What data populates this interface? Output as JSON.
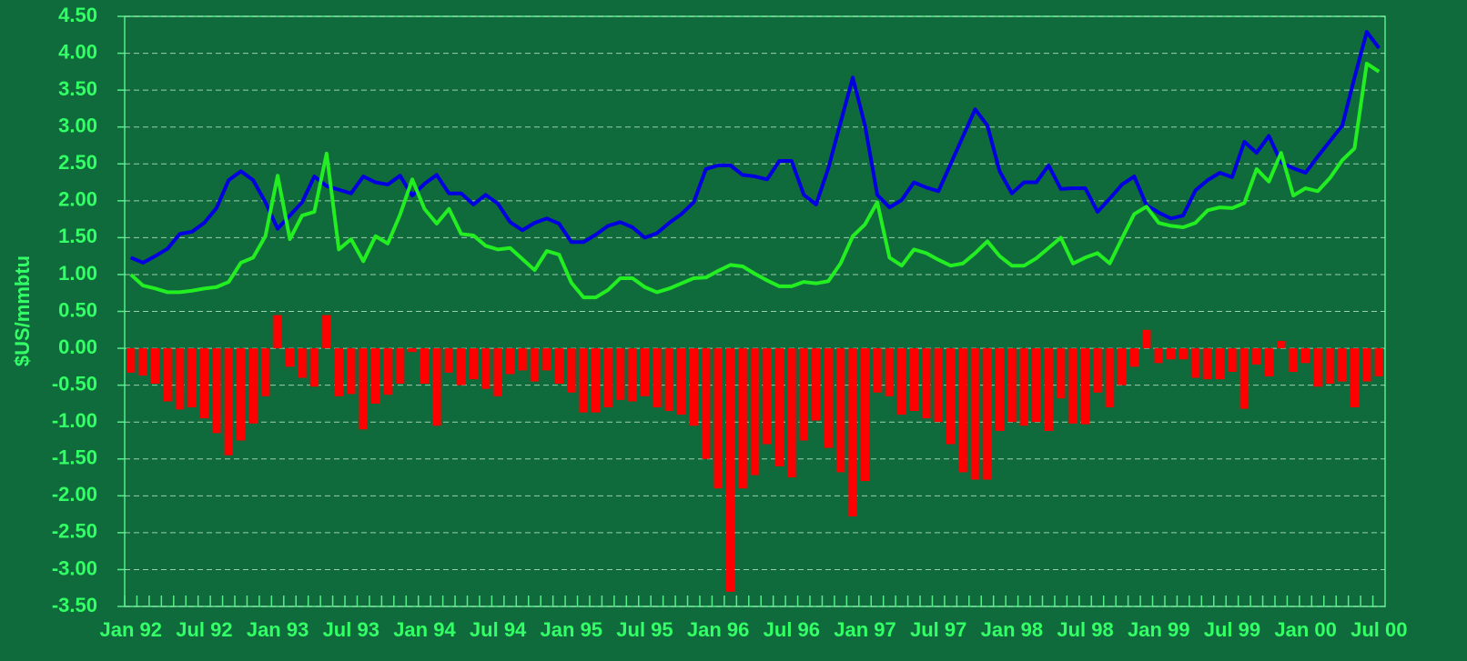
{
  "chart_data": {
    "type": "combo",
    "ylabel": "$US/mmbtu",
    "categories": [
      "Jan 92",
      null,
      null,
      null,
      null,
      null,
      "Jul 92",
      null,
      null,
      null,
      null,
      null,
      "Jan 93",
      null,
      null,
      null,
      null,
      null,
      "Jul 93",
      null,
      null,
      null,
      null,
      null,
      "Jan 94",
      null,
      null,
      null,
      null,
      null,
      "Jul 94",
      null,
      null,
      null,
      null,
      null,
      "Jan 95",
      null,
      null,
      null,
      null,
      null,
      "Jul 95",
      null,
      null,
      null,
      null,
      null,
      "Jan 96",
      null,
      null,
      null,
      null,
      null,
      "Jul 96",
      null,
      null,
      null,
      null,
      null,
      "Jan 97",
      null,
      null,
      null,
      null,
      null,
      "Jul 97",
      null,
      null,
      null,
      null,
      null,
      "Jan 98",
      null,
      null,
      null,
      null,
      null,
      "Jul 98",
      null,
      null,
      null,
      null,
      null,
      "Jan 99",
      null,
      null,
      null,
      null,
      null,
      "Jul 99",
      null,
      null,
      null,
      null,
      null,
      "Jan 00",
      null,
      null,
      null,
      null,
      null,
      "Jul 00"
    ],
    "series": [
      {
        "type": "bar",
        "color": "#ff0000",
        "values": [
          -0.33,
          -0.37,
          -0.48,
          -0.72,
          -0.83,
          -0.8,
          -0.95,
          -1.15,
          -1.45,
          -1.25,
          -1.02,
          -0.65,
          0.45,
          -0.25,
          -0.4,
          -0.52,
          0.45,
          -0.65,
          -0.62,
          -1.1,
          -0.75,
          -0.63,
          -0.48,
          -0.05,
          -0.48,
          -1.05,
          -0.33,
          -0.5,
          -0.42,
          -0.55,
          -0.65,
          -0.35,
          -0.3,
          -0.45,
          -0.3,
          -0.48,
          -0.6,
          -0.87,
          -0.87,
          -0.8,
          -0.7,
          -0.72,
          -0.65,
          -0.8,
          -0.85,
          -0.9,
          -1.05,
          -1.5,
          -1.9,
          -3.3,
          -1.9,
          -1.72,
          -1.3,
          -1.6,
          -1.75,
          -1.25,
          -0.98,
          -1.35,
          -1.68,
          -2.28,
          -1.8,
          -0.6,
          -0.65,
          -0.9,
          -0.85,
          -0.95,
          -1.0,
          -1.3,
          -1.68,
          -1.78,
          -1.78,
          -1.12,
          -1.0,
          -1.05,
          -1.0,
          -1.12,
          -0.68,
          -1.02,
          -1.03,
          -0.6,
          -0.8,
          -0.5,
          -0.25,
          0.25,
          -0.2,
          -0.15,
          -0.15,
          -0.4,
          -0.42,
          -0.42,
          -0.32,
          -0.82,
          -0.22,
          -0.38,
          0.1,
          -0.32,
          -0.2,
          -0.52,
          -0.48,
          -0.45,
          -0.8,
          -0.45,
          -0.38
        ]
      },
      {
        "type": "line",
        "color": "#0000e0",
        "values": [
          1.23,
          1.16,
          1.25,
          1.35,
          1.55,
          1.58,
          1.7,
          1.9,
          2.28,
          2.4,
          2.28,
          1.98,
          1.62,
          1.8,
          1.98,
          2.33,
          2.2,
          2.15,
          2.1,
          2.33,
          2.25,
          2.22,
          2.34,
          2.07,
          2.23,
          2.35,
          2.1,
          2.1,
          1.95,
          2.08,
          1.96,
          1.71,
          1.6,
          1.7,
          1.76,
          1.69,
          1.44,
          1.44,
          1.54,
          1.66,
          1.71,
          1.64,
          1.5,
          1.56,
          1.7,
          1.82,
          1.98,
          2.43,
          2.48,
          2.48,
          2.35,
          2.33,
          2.29,
          2.54,
          2.54,
          2.08,
          1.95,
          2.44,
          3.06,
          3.67,
          3.02,
          2.08,
          1.91,
          2.01,
          2.25,
          2.18,
          2.13,
          2.5,
          2.87,
          3.24,
          3.02,
          2.4,
          2.1,
          2.25,
          2.25,
          2.48,
          2.16,
          2.17,
          2.17,
          1.85,
          2.03,
          2.22,
          2.33,
          1.94,
          1.84,
          1.76,
          1.8,
          2.14,
          2.28,
          2.38,
          2.32,
          2.8,
          2.65,
          2.88,
          2.52,
          2.44,
          2.38,
          2.6,
          2.81,
          3.02,
          3.67,
          4.29,
          4.07
        ]
      },
      {
        "type": "line",
        "color": "#22ee22",
        "values": [
          1.0,
          0.85,
          0.81,
          0.76,
          0.76,
          0.78,
          0.81,
          0.83,
          0.9,
          1.16,
          1.23,
          1.52,
          2.34,
          1.48,
          1.8,
          1.85,
          2.64,
          1.34,
          1.48,
          1.18,
          1.52,
          1.42,
          1.81,
          2.29,
          1.89,
          1.69,
          1.89,
          1.55,
          1.53,
          1.39,
          1.34,
          1.36,
          1.21,
          1.06,
          1.32,
          1.27,
          0.89,
          0.69,
          0.69,
          0.79,
          0.95,
          0.95,
          0.83,
          0.76,
          0.81,
          0.88,
          0.95,
          0.96,
          1.05,
          1.13,
          1.11,
          1.01,
          0.92,
          0.84,
          0.84,
          0.9,
          0.88,
          0.91,
          1.15,
          1.52,
          1.68,
          1.98,
          1.23,
          1.12,
          1.34,
          1.29,
          1.2,
          1.12,
          1.15,
          1.29,
          1.45,
          1.25,
          1.12,
          1.12,
          1.22,
          1.36,
          1.5,
          1.15,
          1.23,
          1.29,
          1.15,
          1.49,
          1.82,
          1.92,
          1.7,
          1.66,
          1.64,
          1.7,
          1.87,
          1.91,
          1.9,
          1.97,
          2.43,
          2.26,
          2.65,
          2.07,
          2.17,
          2.13,
          2.31,
          2.55,
          2.71,
          3.86,
          3.75
        ]
      }
    ],
    "ylim": [
      -3.5,
      4.5
    ],
    "yticks": [
      {
        "value": 4.5,
        "label": "4.50"
      },
      {
        "value": 4,
        "label": "4.00"
      },
      {
        "value": 3.5,
        "label": "3.50"
      },
      {
        "value": 3,
        "label": "3.00"
      },
      {
        "value": 2.5,
        "label": "2.50"
      },
      {
        "value": 2,
        "label": "2.00"
      },
      {
        "value": 1.5,
        "label": "1.50"
      },
      {
        "value": 1,
        "label": "1.00"
      },
      {
        "value": 0.5,
        "label": "0.50"
      },
      {
        "value": 0,
        "label": "0.00"
      },
      {
        "value": -0.5,
        "label": "-0.50"
      },
      {
        "value": -1,
        "label": "-1.00"
      },
      {
        "value": -1.5,
        "label": "-1.50"
      },
      {
        "value": -2,
        "label": "-2.00"
      },
      {
        "value": -2.5,
        "label": "-2.50"
      },
      {
        "value": -3,
        "label": "-3.00"
      },
      {
        "value": -3.5,
        "label": "-3.50"
      }
    ],
    "grid": true
  }
}
